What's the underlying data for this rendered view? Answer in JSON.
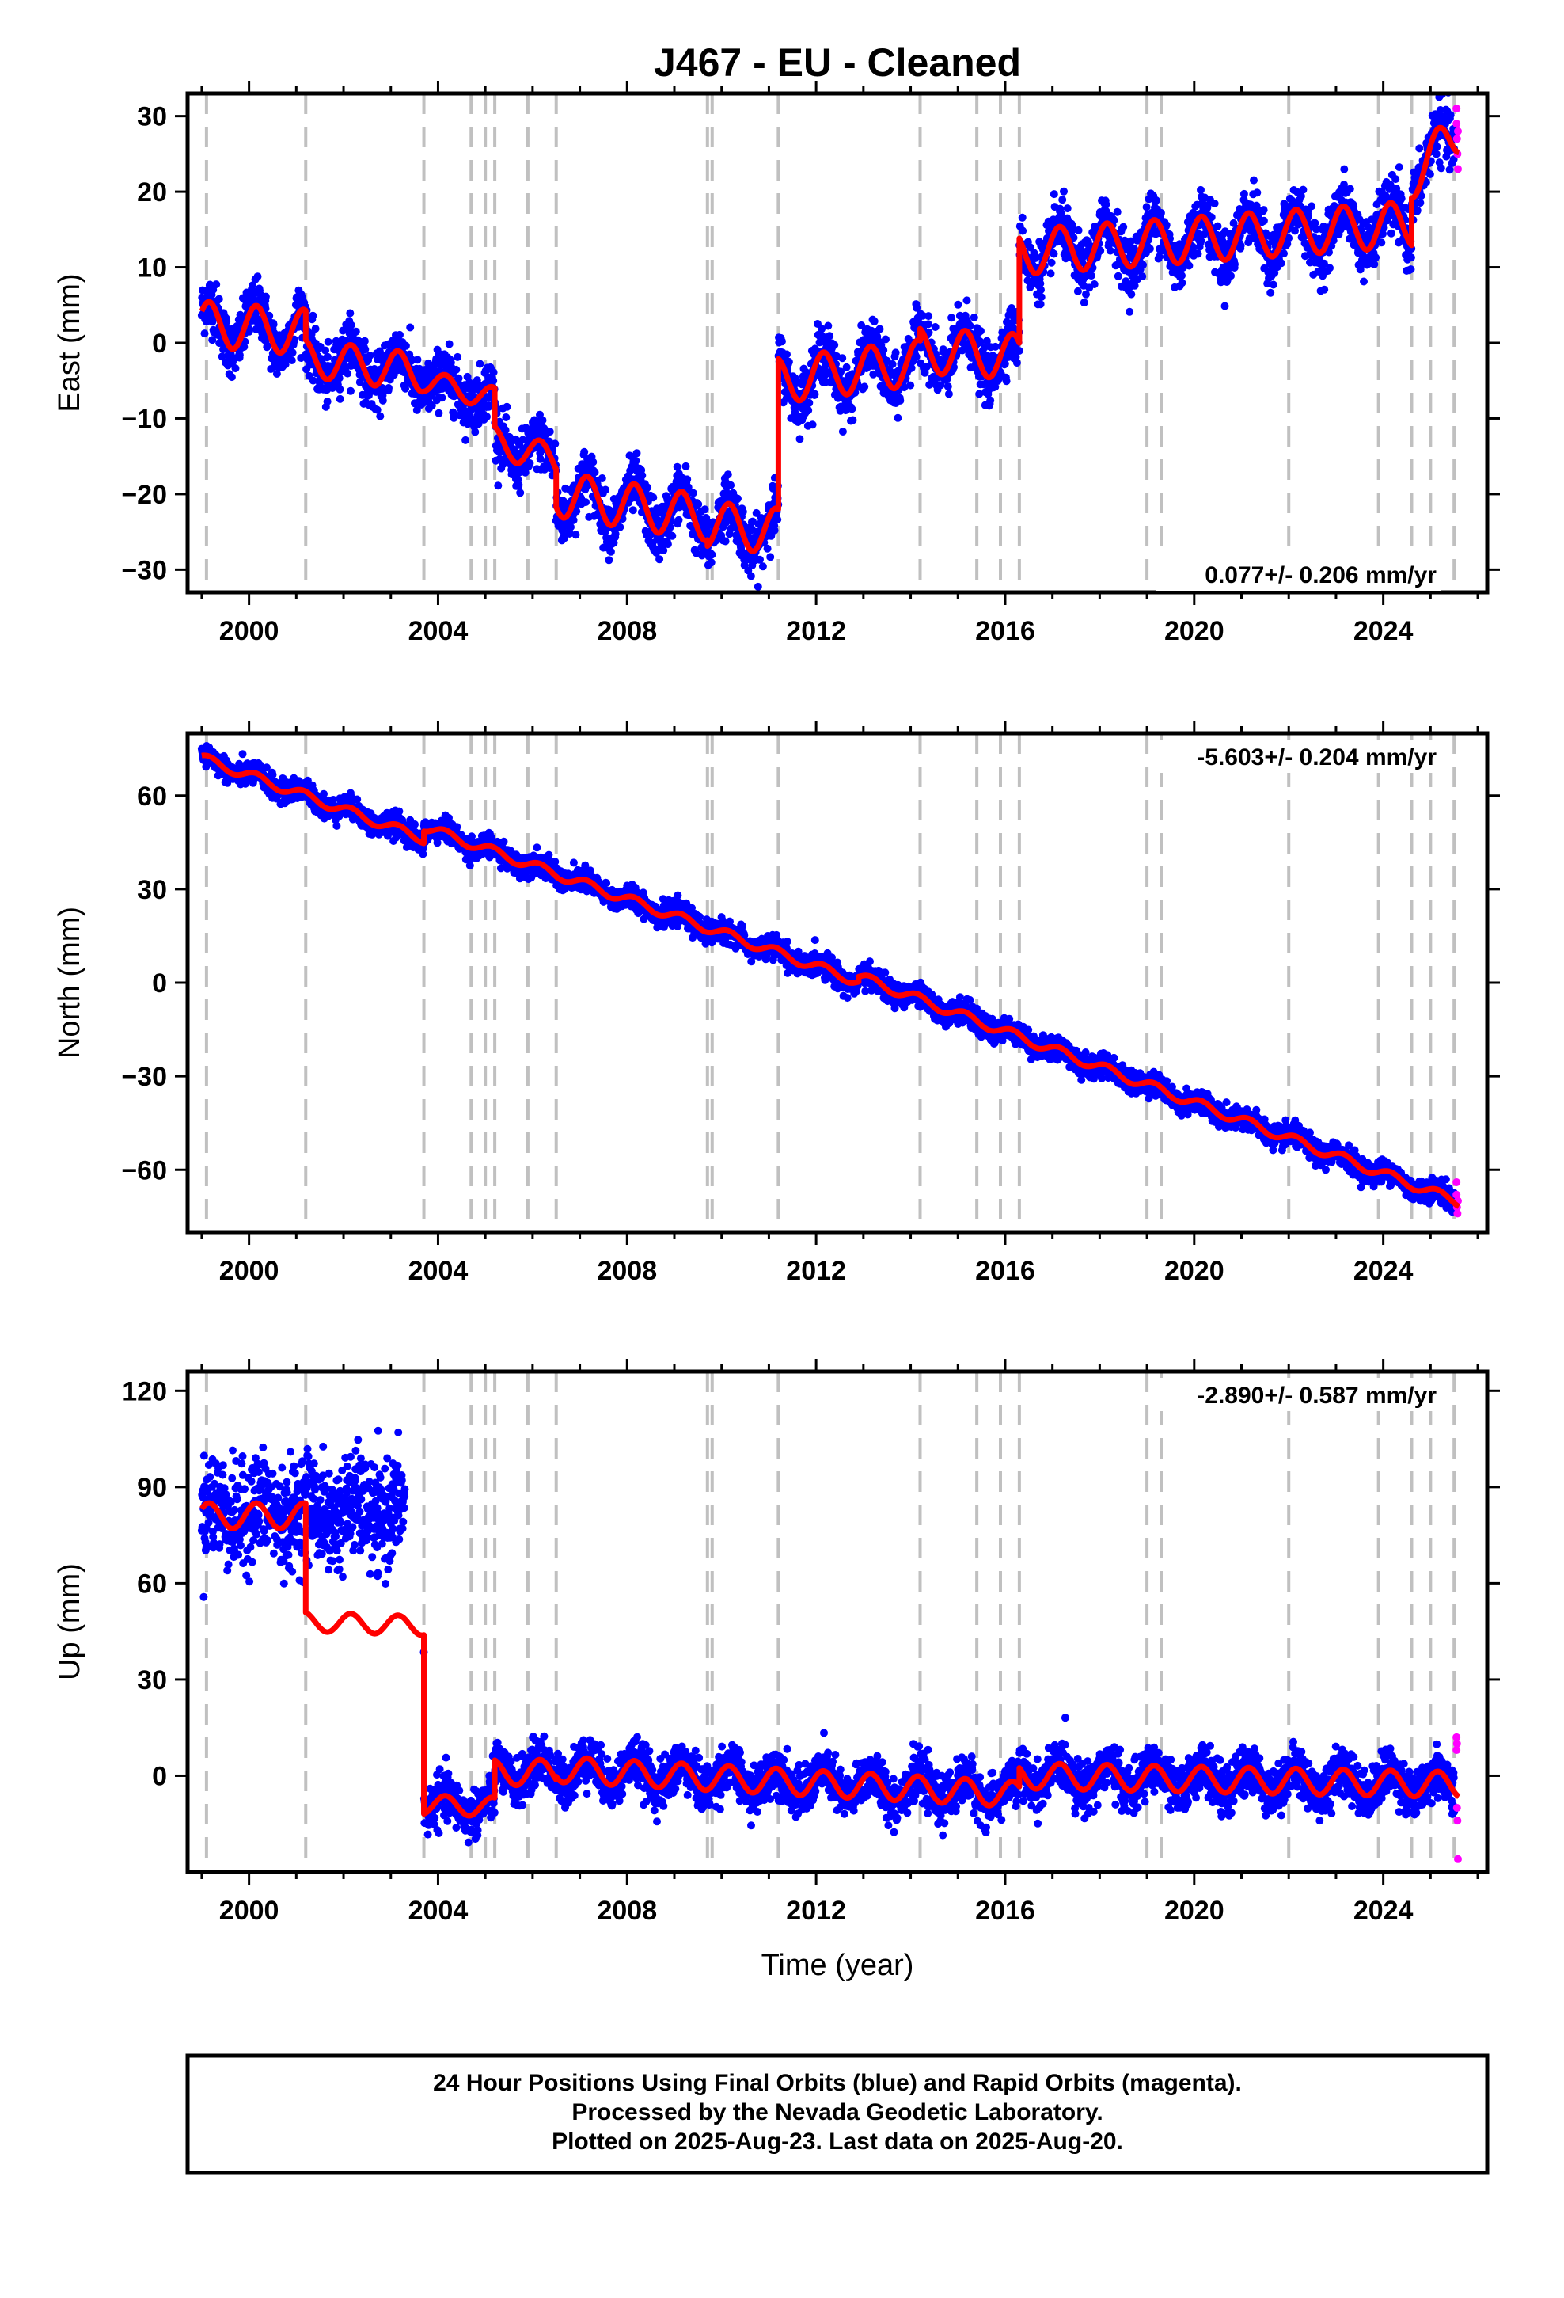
{
  "title": "J467  - EU - Cleaned",
  "footer": {
    "line1": "24 Hour Positions Using Final Orbits (blue) and Rapid Orbits (magenta).",
    "line2": "Processed by the Nevada Geodetic Laboratory.",
    "line3": "Plotted on 2025-Aug-23. Last data on 2025-Aug-20."
  },
  "colors": {
    "final": "#0000ff",
    "rapid": "#ff00ff",
    "model": "#ff0000",
    "event": "#c0c0c0"
  },
  "chart_data": [
    {
      "type": "scatter",
      "ylabel": "East (mm)",
      "xlabel": "",
      "rate": "0.077+/- 0.206 mm/yr",
      "xlim": [
        1998.7,
        2026.2
      ],
      "ylim": [
        -33,
        33
      ],
      "xticks": [
        "2000",
        "2004",
        "2008",
        "2012",
        "2016",
        "2020",
        "2024"
      ],
      "yticks": [
        "30",
        "20",
        "10",
        "0",
        "−10",
        "−20",
        "−30"
      ],
      "event_lines": [
        1999.1,
        2001.2,
        2003.7,
        2004.7,
        2005.0,
        2005.2,
        2005.9,
        2006.5,
        2009.7,
        2009.8,
        2011.2,
        2014.2,
        2015.4,
        2015.9,
        2016.3,
        2019.0,
        2019.3,
        2022.0,
        2023.9,
        2024.6,
        2025.0,
        2025.5
      ],
      "model_segments": [
        {
          "t0": 1999.0,
          "t1": 2001.2,
          "offset": 2.5,
          "trend": -0.5,
          "amp": 3.0
        },
        {
          "t0": 2001.2,
          "t1": 2003.7,
          "offset": -2.0,
          "trend": -0.8,
          "amp": 2.5
        },
        {
          "t0": 2003.7,
          "t1": 2005.2,
          "offset": -5.0,
          "trend": -1.6,
          "amp": 1.5
        },
        {
          "t0": 2005.2,
          "t1": 2006.5,
          "offset": -13.0,
          "trend": -2.0,
          "amp": 2.0
        },
        {
          "t0": 2006.5,
          "t1": 2009.7,
          "offset": -20.0,
          "trend": -1.0,
          "amp": 3.0
        },
        {
          "t0": 2009.7,
          "t1": 2011.2,
          "offset": -24.0,
          "trend": -0.6,
          "amp": 3.0
        },
        {
          "t0": 2011.2,
          "t1": 2014.2,
          "offset": -5.0,
          "trend": 0.8,
          "amp": 3.0
        },
        {
          "t0": 2014.2,
          "t1": 2016.3,
          "offset": -1.0,
          "trend": -0.4,
          "amp": 3.0
        },
        {
          "t0": 2016.3,
          "t1": 2024.6,
          "offset": 12.0,
          "trend": 0.45,
          "amp": 3.0
        },
        {
          "t0": 2024.6,
          "t1": 2025.6,
          "offset": 22.0,
          "trend": 6.0,
          "amp": 3.0
        }
      ],
      "scatter_spread": 3.0,
      "scatter_start": 1999.0,
      "rapid_points": [
        [
          2025.55,
          31
        ],
        [
          2025.55,
          29
        ],
        [
          2025.56,
          27
        ],
        [
          2025.57,
          25
        ],
        [
          2025.58,
          23
        ],
        [
          2025.58,
          28
        ]
      ]
    },
    {
      "type": "scatter",
      "ylabel": "North (mm)",
      "xlabel": "",
      "rate": "-5.603+/- 0.204 mm/yr",
      "xlim": [
        1998.7,
        2026.2
      ],
      "ylim": [
        -80,
        80
      ],
      "xticks": [
        "2000",
        "2004",
        "2008",
        "2012",
        "2016",
        "2020",
        "2024"
      ],
      "yticks": [
        "60",
        "30",
        "0",
        "−30",
        "−60"
      ],
      "event_lines": [
        1999.1,
        2001.2,
        2003.7,
        2004.7,
        2005.0,
        2005.2,
        2005.9,
        2006.5,
        2009.7,
        2009.8,
        2011.2,
        2014.2,
        2015.4,
        2015.9,
        2016.3,
        2019.0,
        2019.3,
        2022.0,
        2023.9,
        2024.6,
        2025.0,
        2025.5
      ],
      "model_segments": [
        {
          "t0": 1999.0,
          "t1": 2003.7,
          "offset": 72.0,
          "trend": -5.5,
          "amp": 1.5
        },
        {
          "t0": 2003.7,
          "t1": 2012.9,
          "offset": 50.0,
          "trend": -5.4,
          "amp": 1.5
        },
        {
          "t0": 2012.9,
          "t1": 2025.6,
          "offset": 2.0,
          "trend": -5.7,
          "amp": 1.5
        }
      ],
      "scatter_spread": 3.0,
      "scatter_start": 1999.0,
      "rapid_points": [
        [
          2025.55,
          -64
        ],
        [
          2025.55,
          -68
        ],
        [
          2025.56,
          -72
        ],
        [
          2025.57,
          -74
        ],
        [
          2025.58,
          -70
        ]
      ]
    },
    {
      "type": "scatter",
      "ylabel": "Up (mm)",
      "xlabel": "Time (year)",
      "rate": "-2.890+/- 0.587 mm/yr",
      "xlim": [
        1998.7,
        2026.2
      ],
      "ylim": [
        -30,
        126
      ],
      "xticks": [
        "2000",
        "2004",
        "2008",
        "2012",
        "2016",
        "2020",
        "2024"
      ],
      "yticks": [
        "120",
        "90",
        "60",
        "30",
        "0"
      ],
      "event_lines": [
        1999.1,
        2001.2,
        2003.7,
        2004.7,
        2005.0,
        2005.2,
        2005.9,
        2006.5,
        2009.7,
        2009.8,
        2011.2,
        2014.2,
        2015.4,
        2015.9,
        2016.3,
        2019.0,
        2019.3,
        2022.0,
        2023.9,
        2024.6,
        2025.0,
        2025.5
      ],
      "model_segments": [
        {
          "t0": 1999.0,
          "t1": 2001.2,
          "offset": 81.0,
          "trend": 0.0,
          "amp": 4.0
        },
        {
          "t0": 2001.2,
          "t1": 2003.7,
          "offset": 48.0,
          "trend": -0.5,
          "amp": 3.0
        },
        {
          "t0": 2003.7,
          "t1": 2005.2,
          "offset": -9.0,
          "trend": -0.5,
          "amp": 3.0
        },
        {
          "t0": 2005.2,
          "t1": 2006.5,
          "offset": 1.0,
          "trend": 0.0,
          "amp": 4.0
        },
        {
          "t0": 2006.5,
          "t1": 2016.3,
          "offset": 2.0,
          "trend": -0.8,
          "amp": 4.0
        },
        {
          "t0": 2016.3,
          "t1": 2025.6,
          "offset": 0.0,
          "trend": -0.3,
          "amp": 4.0
        }
      ],
      "scatter_spread": 6.0,
      "scatter_start": 2003.7,
      "scatter_early": {
        "t0": 1999.0,
        "t1": 2003.3,
        "center": 82.0,
        "spread": 8.0
      },
      "rapid_points": [
        [
          2025.55,
          12
        ],
        [
          2025.55,
          8
        ],
        [
          2025.56,
          -10
        ],
        [
          2025.57,
          -14
        ],
        [
          2025.58,
          -26
        ],
        [
          2025.56,
          10
        ]
      ]
    }
  ]
}
